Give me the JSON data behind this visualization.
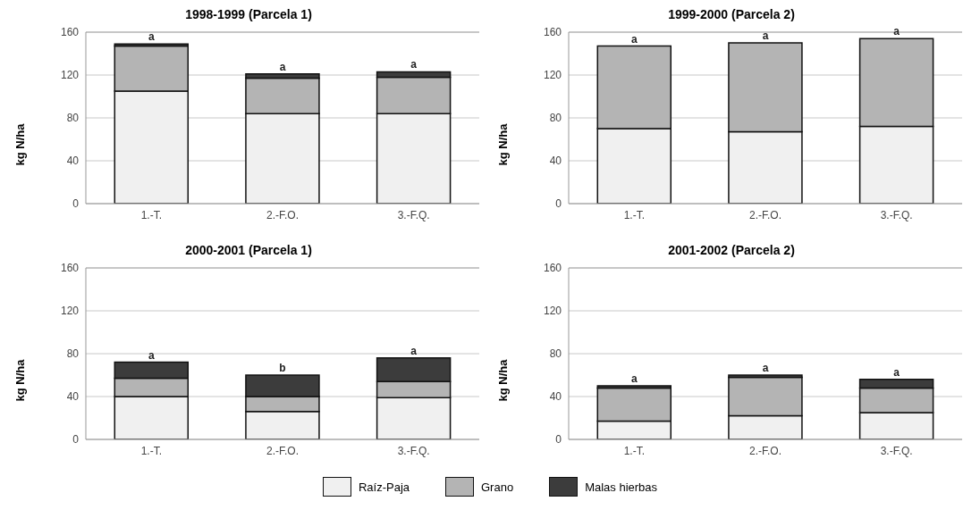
{
  "chart_data": [
    {
      "type": "bar",
      "title": "1998-1999 (Parcela 1)",
      "ylabel": "kg N/ha",
      "categories": [
        "1.-T.",
        "2.-F.O.",
        "3.-F.Q."
      ],
      "stacked": true,
      "ylim": [
        0,
        160
      ],
      "yticks": [
        0,
        40,
        80,
        120,
        160
      ],
      "grid": "y",
      "legend": "bottom",
      "series": [
        {
          "name": "Raíz-Paja",
          "color": "#f0f0f0",
          "values": [
            105,
            84,
            84
          ]
        },
        {
          "name": "Grano",
          "color": "#b4b4b4",
          "values": [
            42,
            33,
            34
          ]
        },
        {
          "name": "Malas hierbas",
          "color": "#3c3c3c",
          "values": [
            2,
            4,
            5
          ]
        }
      ],
      "annotations": [
        {
          "text": "a",
          "x": "1.-T.",
          "y": 149
        },
        {
          "text": "a",
          "x": "2.-F.O.",
          "y": 121
        },
        {
          "text": "a",
          "x": "3.-F.Q.",
          "y": 123
        }
      ]
    },
    {
      "type": "bar",
      "title": "1999-2000 (Parcela 2)",
      "ylabel": "kg N/ha",
      "categories": [
        "1.-T.",
        "2.-F.O.",
        "3.-F.Q."
      ],
      "stacked": true,
      "ylim": [
        0,
        160
      ],
      "yticks": [
        0,
        40,
        80,
        120,
        160
      ],
      "grid": "y",
      "series": [
        {
          "color": "#f0f0f0",
          "values": [
            70,
            67,
            72
          ]
        },
        {
          "color": "#b4b4b4",
          "values": [
            77,
            83,
            82
          ]
        },
        {
          "color": "#3c3c3c",
          "values": [
            null,
            null,
            null
          ]
        }
      ],
      "annotations": [
        {
          "text": "a",
          "x": "1.-T.",
          "y": 147
        },
        {
          "text": "a",
          "x": "2.-F.O.",
          "y": 150
        },
        {
          "text": "a",
          "x": "3.-F.Q.",
          "y": 154
        }
      ]
    },
    {
      "type": "bar",
      "title": "2000-2001 (Parcela 1)",
      "ylabel": "kg N/ha",
      "categories": [
        "1.-T.",
        "2.-F.O.",
        "3.-F.Q."
      ],
      "stacked": true,
      "ylim": [
        0,
        160
      ],
      "yticks": [
        0,
        40,
        80,
        120,
        160
      ],
      "grid": "y",
      "series": [
        {
          "color": "#f0f0f0",
          "values": [
            40,
            26,
            39
          ]
        },
        {
          "color": "#b4b4b4",
          "values": [
            17,
            14,
            15
          ]
        },
        {
          "color": "#3c3c3c",
          "values": [
            15,
            20,
            22
          ]
        }
      ],
      "annotations": [
        {
          "text": "a",
          "x": "1.-T.",
          "y": 72
        },
        {
          "text": "b",
          "x": "2.-F.O.",
          "y": 60
        },
        {
          "text": "a",
          "x": "3.-F.Q.",
          "y": 76
        }
      ]
    },
    {
      "type": "bar",
      "title": "2001-2002 (Parcela 2)",
      "ylabel": "kg N/ha",
      "categories": [
        "1.-T.",
        "2.-F.O.",
        "3.-F.Q."
      ],
      "stacked": true,
      "ylim": [
        0,
        160
      ],
      "yticks": [
        0,
        40,
        80,
        120,
        160
      ],
      "grid": "y",
      "series": [
        {
          "color": "#f0f0f0",
          "values": [
            17,
            22,
            25
          ]
        },
        {
          "color": "#b4b4b4",
          "values": [
            31,
            36,
            23
          ]
        },
        {
          "color": "#3c3c3c",
          "values": [
            2,
            2,
            8
          ]
        }
      ],
      "annotations": [
        {
          "text": "a",
          "x": "1.-T.",
          "y": 50
        },
        {
          "text": "a",
          "x": "2.-F.O.",
          "y": 60
        },
        {
          "text": "a",
          "x": "3.-F.Q.",
          "y": 56
        }
      ]
    }
  ]
}
